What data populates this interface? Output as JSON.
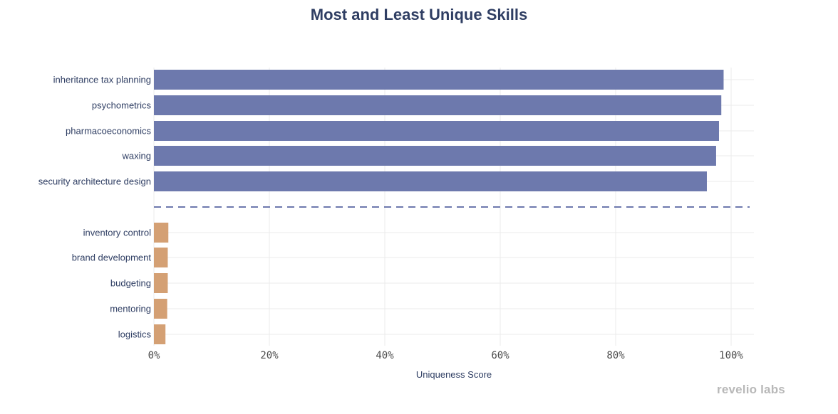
{
  "chart_data": {
    "type": "bar",
    "orientation": "horizontal",
    "title": "Most and Least Unique Skills",
    "xlabel": "Uniqueness Score",
    "ylabel": "",
    "xlim": [
      0,
      1.0
    ],
    "x_ticks": [
      "0%",
      "20%",
      "40%",
      "60%",
      "80%",
      "100%"
    ],
    "grid": true,
    "divider": "dashed",
    "groups": [
      {
        "color": "#6d79ad",
        "categories": [
          "inheritance tax planning",
          "psychometrics",
          "pharmacoeconomics",
          "waxing",
          "security architecture design"
        ],
        "values": [
          0.987,
          0.983,
          0.979,
          0.974,
          0.958
        ]
      },
      {
        "color": "#d4a074",
        "categories": [
          "inventory control",
          "brand development",
          "budgeting",
          "mentoring",
          "logistics"
        ],
        "values": [
          0.025,
          0.024,
          0.024,
          0.023,
          0.02
        ]
      }
    ]
  },
  "brand": "revelio labs",
  "divider_color": "#6d79ad"
}
